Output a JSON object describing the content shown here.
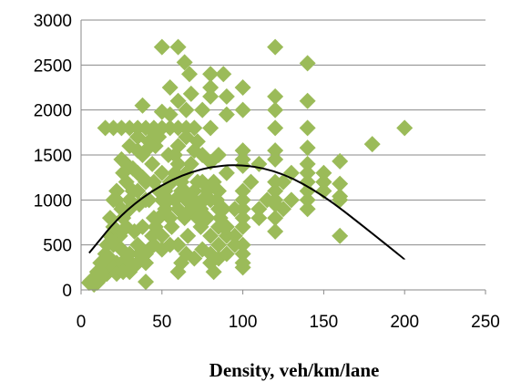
{
  "chart_data": {
    "type": "scatter",
    "title": "",
    "xlabel": "Density, veh/km/lane",
    "ylabel": "",
    "xlim": [
      0,
      250
    ],
    "ylim": [
      0,
      3000
    ],
    "x_ticks": [
      "0",
      "50",
      "100",
      "150",
      "200",
      "250"
    ],
    "y_ticks": [
      "0",
      "500",
      "1000",
      "1500",
      "2000",
      "2500",
      "3000"
    ],
    "grid": {
      "horizontal": true,
      "vertical": false
    },
    "legend": "none",
    "marker": {
      "shape": "diamond",
      "color": "#9BBB59"
    },
    "series": [
      {
        "points": [
          [
            5,
            80
          ],
          [
            8,
            120
          ],
          [
            10,
            200
          ],
          [
            12,
            300
          ],
          [
            14,
            250
          ],
          [
            15,
            400
          ],
          [
            16,
            180
          ],
          [
            18,
            350
          ],
          [
            20,
            500
          ],
          [
            22,
            300
          ],
          [
            24,
            600
          ],
          [
            25,
            450
          ],
          [
            26,
            800
          ],
          [
            28,
            700
          ],
          [
            30,
            900
          ],
          [
            30,
            400
          ],
          [
            32,
            1100
          ],
          [
            33,
            650
          ],
          [
            35,
            1300
          ],
          [
            35,
            500
          ],
          [
            36,
            950
          ],
          [
            38,
            1500
          ],
          [
            38,
            700
          ],
          [
            40,
            1200
          ],
          [
            40,
            300
          ],
          [
            40,
            90
          ],
          [
            42,
            1000
          ],
          [
            44,
            1400
          ],
          [
            45,
            800
          ],
          [
            46,
            1600
          ],
          [
            48,
            1100
          ],
          [
            50,
            1300
          ],
          [
            50,
            600
          ],
          [
            52,
            900
          ],
          [
            54,
            1500
          ],
          [
            55,
            1200
          ],
          [
            56,
            700
          ],
          [
            58,
            1000
          ],
          [
            60,
            1400
          ],
          [
            60,
            500
          ],
          [
            62,
            1100
          ],
          [
            64,
            800
          ],
          [
            65,
            1300
          ],
          [
            66,
            600
          ],
          [
            68,
            1000
          ],
          [
            70,
            900
          ],
          [
            72,
            1200
          ],
          [
            74,
            700
          ],
          [
            75,
            1000
          ],
          [
            78,
            800
          ],
          [
            80,
            600
          ],
          [
            80,
            400
          ],
          [
            82,
            200
          ],
          [
            85,
            1100
          ],
          [
            85,
            700
          ],
          [
            88,
            900
          ],
          [
            90,
            600
          ],
          [
            95,
            900
          ],
          [
            100,
            700
          ],
          [
            100,
            300
          ],
          [
            100,
            250
          ],
          [
            100,
            1550
          ],
          [
            105,
            1200
          ],
          [
            110,
            800
          ],
          [
            115,
            1000
          ],
          [
            120,
            1200
          ],
          [
            120,
            650
          ],
          [
            125,
            900
          ],
          [
            140,
            1200
          ],
          [
            140,
            900
          ],
          [
            150,
            1100
          ],
          [
            160,
            600
          ],
          [
            160,
            1000
          ],
          [
            20,
            1000
          ],
          [
            25,
            1450
          ],
          [
            30,
            1600
          ],
          [
            35,
            1700
          ],
          [
            45,
            1750
          ],
          [
            55,
            1800
          ],
          [
            70,
            1800
          ],
          [
            42,
            1650
          ],
          [
            48,
            1700
          ],
          [
            38,
            1250
          ],
          [
            28,
            1200
          ],
          [
            18,
            800
          ],
          [
            22,
            1100
          ],
          [
            32,
            1350
          ],
          [
            15,
            1800
          ],
          [
            20,
            1800
          ],
          [
            25,
            1800
          ],
          [
            30,
            1800
          ],
          [
            35,
            1800
          ],
          [
            40,
            1800
          ],
          [
            45,
            1800
          ],
          [
            50,
            1800
          ],
          [
            60,
            1800
          ],
          [
            65,
            1800
          ],
          [
            80,
            1800
          ],
          [
            120,
            1800
          ],
          [
            140,
            1800
          ],
          [
            38,
            2050
          ],
          [
            50,
            1980
          ],
          [
            55,
            1950
          ],
          [
            65,
            2000
          ],
          [
            75,
            2000
          ],
          [
            90,
            1950
          ],
          [
            100,
            2000
          ],
          [
            120,
            2000
          ],
          [
            140,
            2100
          ],
          [
            60,
            2100
          ],
          [
            68,
            2180
          ],
          [
            80,
            2150
          ],
          [
            90,
            2150
          ],
          [
            100,
            2250
          ],
          [
            120,
            2150
          ],
          [
            55,
            2250
          ],
          [
            80,
            2250
          ],
          [
            50,
            2700
          ],
          [
            60,
            2700
          ],
          [
            64,
            2530
          ],
          [
            67,
            2400
          ],
          [
            80,
            2400
          ],
          [
            88,
            2400
          ],
          [
            120,
            2700
          ],
          [
            140,
            2520
          ],
          [
            180,
            1620
          ],
          [
            200,
            1800
          ],
          [
            160,
            1430
          ],
          [
            160,
            1180
          ],
          [
            150,
            1300
          ],
          [
            140,
            1580
          ],
          [
            140,
            1400
          ],
          [
            120,
            1550
          ],
          [
            120,
            1450
          ],
          [
            100,
            1450
          ],
          [
            100,
            1380
          ],
          [
            110,
            1400
          ],
          [
            130,
            1300
          ],
          [
            140,
            1300
          ],
          [
            150,
            1200
          ],
          [
            120,
            1100
          ],
          [
            100,
            1100
          ],
          [
            90,
            1300
          ],
          [
            85,
            1500
          ],
          [
            80,
            1420
          ],
          [
            75,
            1500
          ],
          [
            70,
            1550
          ],
          [
            68,
            1400
          ],
          [
            72,
            1650
          ],
          [
            65,
            1700
          ],
          [
            60,
            1600
          ],
          [
            58,
            1500
          ],
          [
            40,
            1550
          ],
          [
            35,
            1550
          ],
          [
            28,
            1400
          ],
          [
            26,
            1300
          ],
          [
            22,
            1000
          ],
          [
            18,
            600
          ],
          [
            16,
            500
          ],
          [
            14,
            300
          ],
          [
            12,
            200
          ],
          [
            10,
            150
          ],
          [
            20,
            700
          ],
          [
            25,
            900
          ],
          [
            30,
            1000
          ],
          [
            35,
            1100
          ],
          [
            40,
            1000
          ],
          [
            45,
            1200
          ],
          [
            50,
            1000
          ],
          [
            55,
            800
          ],
          [
            60,
            900
          ],
          [
            65,
            1000
          ],
          [
            70,
            1100
          ],
          [
            75,
            1200
          ],
          [
            80,
            1000
          ],
          [
            85,
            900
          ],
          [
            90,
            700
          ],
          [
            95,
            600
          ],
          [
            100,
            500
          ],
          [
            100,
            400
          ],
          [
            100,
            800
          ],
          [
            100,
            900
          ],
          [
            100,
            1000
          ],
          [
            110,
            900
          ],
          [
            120,
            1000
          ],
          [
            120,
            800
          ],
          [
            120,
            950
          ],
          [
            125,
            1200
          ],
          [
            130,
            1000
          ],
          [
            140,
            1100
          ],
          [
            140,
            1000
          ],
          [
            150,
            1200
          ],
          [
            160,
            1040
          ],
          [
            40,
            400
          ],
          [
            45,
            500
          ],
          [
            50,
            450
          ],
          [
            55,
            500
          ],
          [
            60,
            200
          ],
          [
            62,
            300
          ],
          [
            65,
            400
          ],
          [
            70,
            350
          ],
          [
            75,
            450
          ],
          [
            80,
            300
          ],
          [
            85,
            500
          ],
          [
            85,
            350
          ],
          [
            90,
            400
          ],
          [
            95,
            500
          ],
          [
            30,
            200
          ],
          [
            35,
            300
          ],
          [
            25,
            250
          ],
          [
            20,
            250
          ],
          [
            22,
            180
          ],
          [
            8,
            60
          ],
          [
            6,
            100
          ],
          [
            10,
            80
          ],
          [
            12,
            120
          ],
          [
            26,
            200
          ],
          [
            28,
            350
          ],
          [
            32,
            250
          ],
          [
            36,
            400
          ],
          [
            42,
            450
          ],
          [
            44,
            600
          ],
          [
            46,
            700
          ],
          [
            48,
            800
          ],
          [
            52,
            1100
          ],
          [
            54,
            1000
          ],
          [
            56,
            1200
          ],
          [
            58,
            1300
          ],
          [
            62,
            1200
          ],
          [
            64,
            1100
          ],
          [
            66,
            1000
          ],
          [
            68,
            900
          ],
          [
            70,
            1000
          ],
          [
            72,
            800
          ],
          [
            74,
            900
          ],
          [
            76,
            1000
          ],
          [
            78,
            1100
          ],
          [
            82,
            1200
          ],
          [
            84,
            1000
          ],
          [
            86,
            800
          ],
          [
            88,
            700
          ]
        ]
      }
    ],
    "trendline": {
      "type": "polynomial-2",
      "x": [
        5,
        25,
        50,
        75,
        100,
        125,
        150,
        175,
        200
      ],
      "y": [
        410,
        850,
        1180,
        1360,
        1400,
        1300,
        1050,
        700,
        340
      ]
    }
  }
}
